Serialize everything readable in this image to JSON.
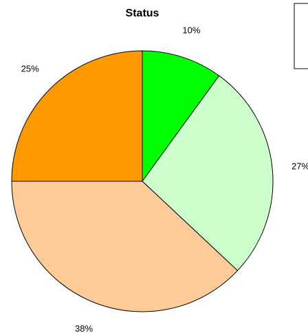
{
  "chart_data": {
    "type": "pie",
    "title": "Status",
    "slices": [
      {
        "percent": 10,
        "label": "10%",
        "color": "#00ff00"
      },
      {
        "percent": 27,
        "label": "27%",
        "color": "#ccffcc"
      },
      {
        "percent": 38,
        "label": "38%",
        "color": "#ffcc99"
      },
      {
        "percent": 25,
        "label": "25%",
        "color": "#ff9900"
      }
    ],
    "start_angle_deg": 90,
    "direction": "clockwise",
    "legend": {
      "placement": "top-right",
      "entries": []
    }
  }
}
